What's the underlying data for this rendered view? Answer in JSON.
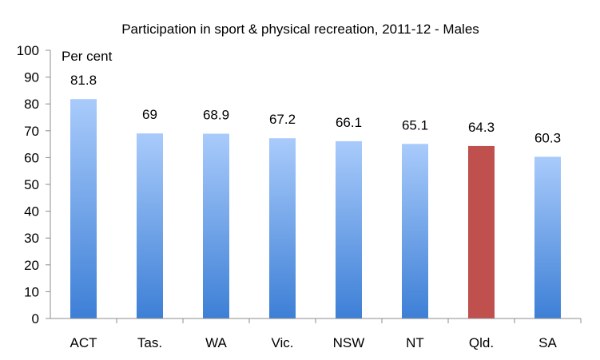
{
  "chart_data": {
    "type": "bar",
    "title": "Participation in sport & physical recreation, 2011-12 - Males",
    "unit_label": "Per cent",
    "xlabel": "",
    "ylabel": "",
    "categories": [
      "ACT",
      "Tas.",
      "WA",
      "Vic.",
      "NSW",
      "NT",
      "Qld.",
      "SA"
    ],
    "values": [
      81.8,
      69,
      68.9,
      67.2,
      66.1,
      65.1,
      64.3,
      60.3
    ],
    "data_labels": [
      "81.8",
      "69",
      "68.9",
      "67.2",
      "66.1",
      "65.1",
      "64.3",
      "60.3"
    ],
    "highlight_category": "Qld.",
    "ylim": [
      0,
      100
    ],
    "yticks": [
      0,
      10,
      20,
      30,
      40,
      50,
      60,
      70,
      80,
      90,
      100
    ],
    "grid": false,
    "legend": "none",
    "colors": {
      "bar_top": "#a9cbfb",
      "bar_bottom": "#3d7fd6",
      "highlight": "#c0504d",
      "axis": "#8c8c8c"
    }
  }
}
